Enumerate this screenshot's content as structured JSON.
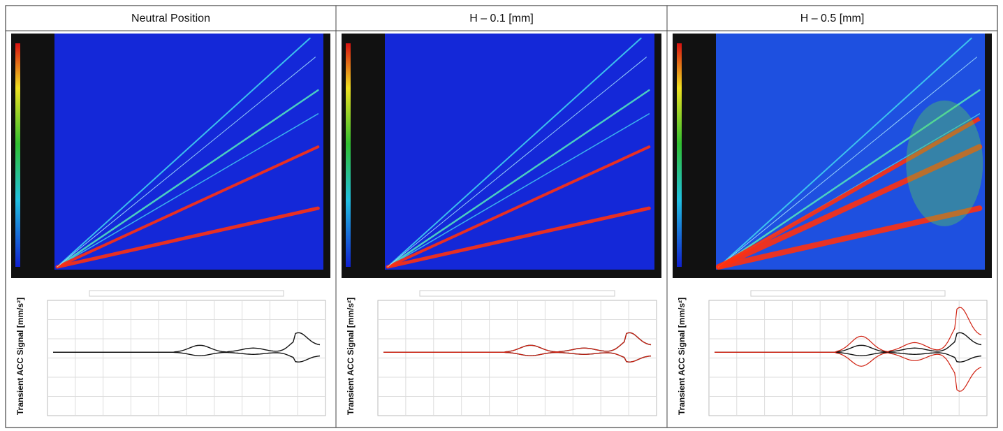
{
  "panels": [
    {
      "title": "Neutral Position",
      "y_axis_label": "Transient ACC Signal [mm/s²]"
    },
    {
      "title": "H – 0.1 [mm]",
      "y_axis_label": "Transient ACC Signal [mm/s²]"
    },
    {
      "title": "H – 0.5 [mm]",
      "y_axis_label": "Transient ACC Signal [mm/s²]"
    }
  ]
}
